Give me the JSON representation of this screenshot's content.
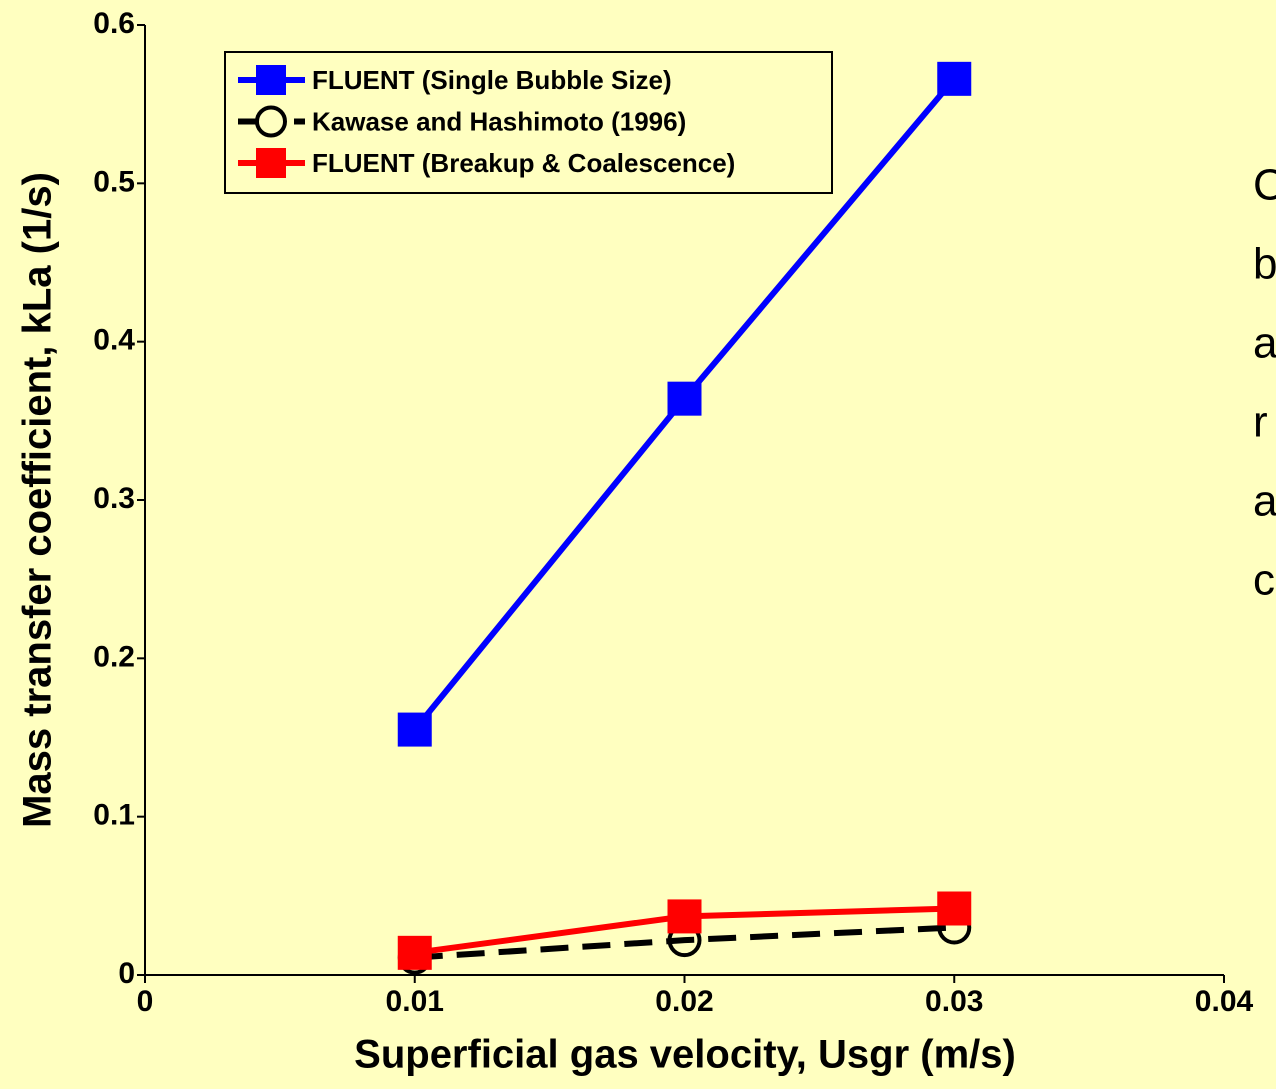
{
  "chart_data": {
    "type": "line",
    "x_label": "Superficial gas velocity, Usgr (m/s)",
    "y_label": "Mass transfer coefficient, kLa (1/s)",
    "x": [
      0.01,
      0.02,
      0.03
    ],
    "series": [
      {
        "name": "FLUENT (Single Bubble Size)",
        "color": "#0000ff",
        "marker": "square",
        "dash": false,
        "values": [
          0.155,
          0.364,
          0.566
        ]
      },
      {
        "name": "Kawase and Hashimoto (1996)",
        "color": "#000000",
        "marker": "circle",
        "dash": true,
        "values": [
          0.011,
          0.022,
          0.03
        ]
      },
      {
        "name": "FLUENT (Breakup & Coalescence)",
        "color": "#ff0000",
        "marker": "square",
        "dash": false,
        "values": [
          0.014,
          0.037,
          0.042
        ]
      }
    ],
    "xlim": [
      0,
      0.04
    ],
    "ylim": [
      0,
      0.6
    ],
    "xticks": [
      0,
      0.01,
      0.02,
      0.03,
      0.04
    ],
    "yticks": [
      0,
      0.1,
      0.2,
      0.3,
      0.4,
      0.5,
      0.6
    ],
    "grid": false,
    "legend": "upper left",
    "side_text": [
      "C",
      "b",
      "a",
      "r",
      "a",
      "c"
    ]
  }
}
